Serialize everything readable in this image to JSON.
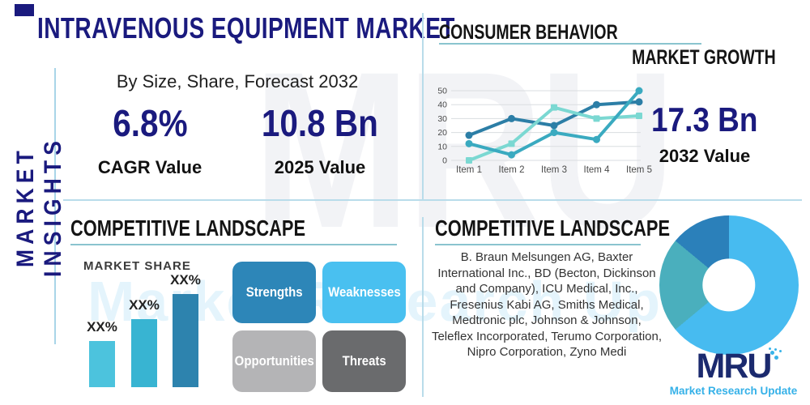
{
  "colors": {
    "navy": "#1a1a7e",
    "heading": "#141414",
    "teal_underline": "#8ac4cf",
    "divider_blue": "#b9dcea",
    "logo_navy": "#1b2a6e",
    "logo_blue": "#35b1e8"
  },
  "sidebar": {
    "label": "MARKET INSIGHTS"
  },
  "header": {
    "title": "INTRAVENOUS EQUIPMENT MARKET",
    "subtitle": "By Size, Share, Forecast 2032"
  },
  "stats": {
    "cagr": {
      "value": "6.8%",
      "label": "CAGR Value"
    },
    "y2025": {
      "value": "10.8 Bn",
      "label": "2025 Value"
    },
    "y2032": {
      "value": "17.3 Bn",
      "label": "2032 Value"
    }
  },
  "top_right": {
    "title": "CONSUMER BEHAVIOR",
    "subtitle": "MARKET GROWTH"
  },
  "bottom_left": {
    "title": "COMPETITIVE LANDSCAPE"
  },
  "bottom_right": {
    "title": "COMPETITIVE LANDSCAPE",
    "companies": "B. Braun Melsungen AG, Baxter International Inc., BD (Becton, Dickinson and Company), ICU Medical, Inc., Fresenius Kabi AG, Smiths Medical, Medtronic plc, Johnson & Johnson, Teleflex Incorporated, Terumo Corporation, Nipro Corporation, Zyno Medi"
  },
  "swot": {
    "strengths": {
      "label": "Strengths",
      "color": "#2d86b8"
    },
    "weaknesses": {
      "label": "Weaknesses",
      "color": "#49c0f0"
    },
    "opportunities": {
      "label": "Opportunities",
      "color": "#b4b4b6"
    },
    "threats": {
      "label": "Threats",
      "color": "#6a6b6d"
    }
  },
  "logo": {
    "text": "MRU",
    "tagline": "Market Research Update"
  },
  "watermark": {
    "big": "MRU",
    "sub": "Market Research Update"
  },
  "chart_data": [
    {
      "type": "line",
      "x": [
        "Item 1",
        "Item 2",
        "Item 3",
        "Item 4",
        "Item 5"
      ],
      "series": [
        {
          "name": "series-dark-teal",
          "color": "#2c7ea6",
          "marker": "circle",
          "values": [
            18,
            30,
            25,
            40,
            42
          ]
        },
        {
          "name": "series-light-aqua",
          "color": "#7bd8d2",
          "marker": "square",
          "values": [
            0,
            12,
            38,
            30,
            32
          ]
        },
        {
          "name": "series-medium-teal",
          "color": "#3aaac0",
          "marker": "circle",
          "values": [
            12,
            4,
            20,
            15,
            50
          ]
        }
      ],
      "ylim": [
        0,
        50
      ],
      "yticks": [
        0,
        10,
        20,
        30,
        40,
        50
      ],
      "grid": true,
      "legend": "none"
    },
    {
      "type": "bar",
      "title": "MARKET SHARE",
      "categories": [
        "XX%",
        "XX%",
        "XX%"
      ],
      "values": [
        30,
        44,
        60
      ],
      "labels": [
        "XX%",
        "XX%",
        "XX%"
      ],
      "ylim": [
        0,
        70
      ],
      "colors": [
        "#4cc3dd",
        "#38b4d2",
        "#2d83ae"
      ]
    },
    {
      "type": "donut",
      "segments": [
        {
          "name": "slice-light-blue",
          "value": 64,
          "color": "#47bbf0"
        },
        {
          "name": "slice-teal",
          "value": 22,
          "color": "#4aafbd"
        },
        {
          "name": "slice-dark-blue",
          "value": 14,
          "color": "#2b80ba"
        }
      ],
      "inner_radius_pct": 38
    }
  ]
}
